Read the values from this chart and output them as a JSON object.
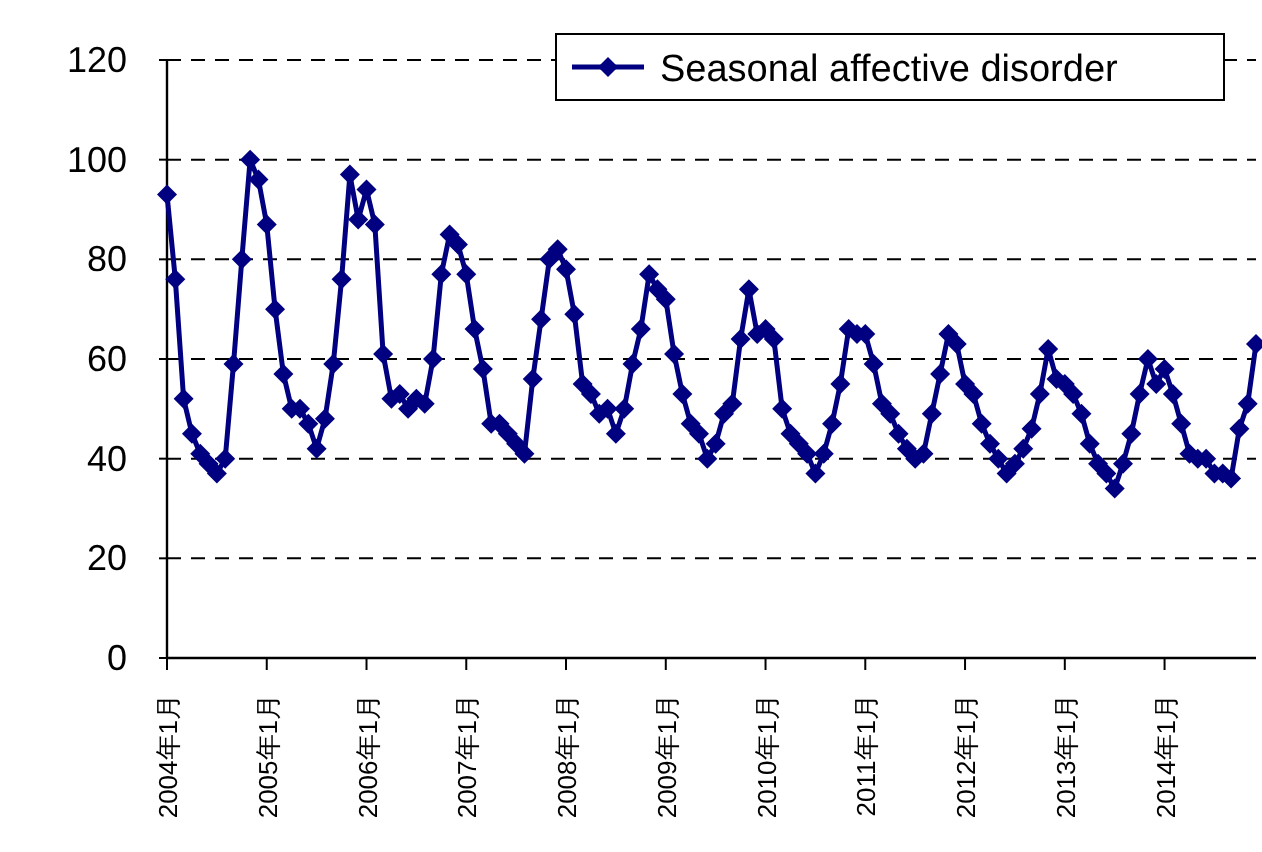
{
  "chart_data": {
    "type": "line",
    "categories": [
      "2004年1月",
      null,
      null,
      null,
      null,
      null,
      null,
      null,
      null,
      null,
      null,
      null,
      "2005年1月",
      null,
      null,
      null,
      null,
      null,
      null,
      null,
      null,
      null,
      null,
      null,
      "2006年1月",
      null,
      null,
      null,
      null,
      null,
      null,
      null,
      null,
      null,
      null,
      null,
      "2007年1月",
      null,
      null,
      null,
      null,
      null,
      null,
      null,
      null,
      null,
      null,
      null,
      "2008年1月",
      null,
      null,
      null,
      null,
      null,
      null,
      null,
      null,
      null,
      null,
      null,
      "2009年1月",
      null,
      null,
      null,
      null,
      null,
      null,
      null,
      null,
      null,
      null,
      null,
      "2010年1月",
      null,
      null,
      null,
      null,
      null,
      null,
      null,
      null,
      null,
      null,
      null,
      "2011年1月",
      null,
      null,
      null,
      null,
      null,
      null,
      null,
      null,
      null,
      null,
      null,
      "2012年1月",
      null,
      null,
      null,
      null,
      null,
      null,
      null,
      null,
      null,
      null,
      null,
      "2013年1月",
      null,
      null,
      null,
      null,
      null,
      null,
      null,
      null,
      null,
      null,
      null,
      "2014年1月",
      null,
      null,
      null,
      null,
      null,
      null,
      null,
      null,
      null,
      null,
      null
    ],
    "series": [
      {
        "name": "Seasonal affective disorder",
        "color": "#000080",
        "values": [
          93,
          76,
          52,
          45,
          41,
          39,
          37,
          40,
          59,
          80,
          100,
          96,
          87,
          70,
          57,
          50,
          50,
          47,
          42,
          48,
          59,
          76,
          97,
          88,
          94,
          87,
          61,
          52,
          53,
          50,
          52,
          51,
          60,
          77,
          85,
          83,
          77,
          66,
          58,
          47,
          47,
          45,
          43,
          41,
          56,
          68,
          80,
          82,
          78,
          69,
          55,
          53,
          49,
          50,
          45,
          50,
          59,
          66,
          77,
          74,
          72,
          61,
          53,
          47,
          45,
          40,
          43,
          49,
          51,
          64,
          74,
          65,
          66,
          64,
          50,
          45,
          43,
          41,
          37,
          41,
          47,
          55,
          66,
          65,
          65,
          59,
          51,
          49,
          45,
          42,
          40,
          41,
          49,
          57,
          65,
          63,
          55,
          53,
          47,
          43,
          40,
          37,
          39,
          42,
          46,
          53,
          62,
          56,
          55,
          53,
          49,
          43,
          39,
          37,
          34,
          39,
          45,
          53,
          60,
          55,
          58,
          53,
          47,
          41,
          40,
          40,
          37,
          37,
          36,
          46,
          51,
          63
        ]
      }
    ],
    "ylim": [
      0,
      120
    ],
    "yticks": [
      0,
      20,
      40,
      60,
      80,
      100,
      120
    ],
    "grid": "y",
    "legend": "top right",
    "marker": "diamond",
    "line_style": "solid"
  }
}
